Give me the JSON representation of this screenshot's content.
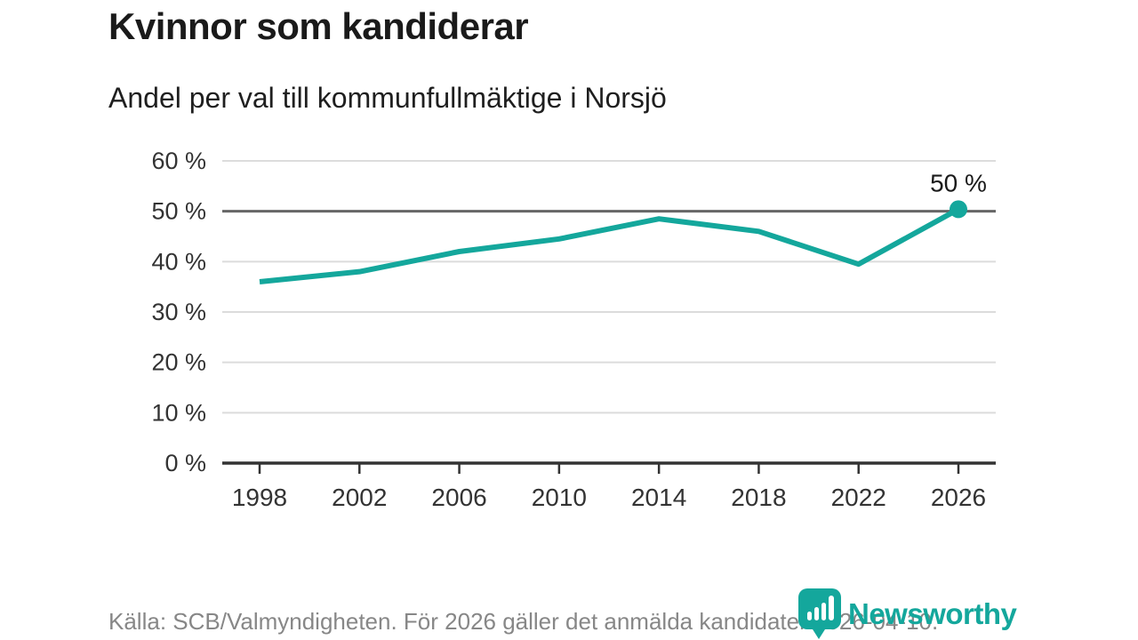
{
  "page": {
    "title": "Kvinnor som kandiderar",
    "subtitle": "Andel per val till kommunfullmäktige i Norsjö",
    "source_note": "Källa: SCB/Valmyndigheten. För 2026 gäller det anmälda kandidater 2026-04-10.",
    "brand": {
      "name": "Newsworthy",
      "icon": "newsworthy-barchart-pin-icon",
      "color": "#14a79c"
    }
  },
  "colors": {
    "accent_teal": "#14a79c",
    "title_text": "#1a1a1a",
    "axis_text": "#333333",
    "gridline_light": "#dcdcdc",
    "reference_line_gray": "#666666",
    "axis_line": "#333333",
    "footer_text": "#878787",
    "background": "#ffffff"
  },
  "chart_data": {
    "type": "line",
    "title": "Kvinnor som kandiderar",
    "subtitle": "Andel per val till kommunfullmäktige i Norsjö",
    "categories": [
      "1998",
      "2002",
      "2006",
      "2010",
      "2014",
      "2018",
      "2022",
      "2026"
    ],
    "values": [
      36,
      38,
      42,
      44.5,
      48.5,
      46,
      39.5,
      50.4
    ],
    "unit": "%",
    "ylim": [
      0,
      60
    ],
    "y_ticks": [
      {
        "value": 0,
        "label": "0 %"
      },
      {
        "value": 10,
        "label": "10 %"
      },
      {
        "value": 20,
        "label": "20 %"
      },
      {
        "value": 30,
        "label": "30 %"
      },
      {
        "value": 40,
        "label": "40 %"
      },
      {
        "value": 50,
        "label": "50 %"
      },
      {
        "value": 60,
        "label": "60 %"
      }
    ],
    "reference_line": {
      "value": 50,
      "color": "#666666"
    },
    "annotation": {
      "text": "50 %",
      "category": "2026"
    },
    "line_color": "#14a79c",
    "marker_on_last_point": true,
    "grid": true,
    "legend": false
  }
}
